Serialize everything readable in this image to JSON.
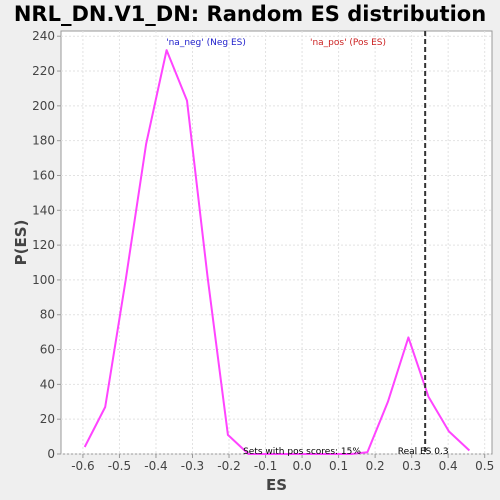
{
  "chart_data": {
    "type": "line",
    "title": "NRL_DN.V1_DN: Random ES distribution",
    "xlabel": "ES",
    "ylabel": "P(ES)",
    "xlim": [
      -0.66,
      0.52
    ],
    "ylim": [
      0,
      243
    ],
    "x_ticks": [
      -0.6,
      -0.5,
      -0.4,
      -0.3,
      -0.2,
      -0.1,
      0.0,
      0.1,
      0.2,
      0.3,
      0.4,
      0.5
    ],
    "x_tick_labels": [
      "-0.6",
      "-0.5",
      "-0.4",
      "-0.3",
      "-0.2",
      "-0.1",
      "0.0",
      "0.1",
      "0.2",
      "0.3",
      "0.4",
      "0.5"
    ],
    "y_ticks": [
      0,
      20,
      40,
      60,
      80,
      100,
      120,
      140,
      160,
      180,
      200,
      220,
      240
    ],
    "y_tick_labels": [
      "0",
      "20",
      "40",
      "60",
      "80",
      "100",
      "120",
      "140",
      "160",
      "180",
      "200",
      "220",
      "240"
    ],
    "grid": true,
    "series": [
      {
        "color": "#ff44ff",
        "x": [
          -0.595,
          -0.539,
          -0.483,
          -0.427,
          -0.371,
          -0.315,
          -0.259,
          -0.203,
          -0.147,
          0.136,
          0.179,
          0.235,
          0.291,
          0.346,
          0.402,
          0.458
        ],
        "values": [
          4,
          27,
          100,
          178,
          232,
          203,
          102,
          11,
          0,
          0,
          1,
          30,
          67,
          33,
          13,
          2
        ]
      }
    ],
    "reference_line": {
      "x": 0.337,
      "color": "#333333",
      "label": "Real ES 0.3"
    },
    "annotations": {
      "neg_label": "'na_neg' (Neg ES)",
      "neg_color": "#2222cc",
      "pos_label": "'na_pos' (Pos ES)",
      "pos_color": "#cc2222",
      "sets_text": "Sets with pos scores: 15%",
      "sets_color": "#000000"
    }
  }
}
